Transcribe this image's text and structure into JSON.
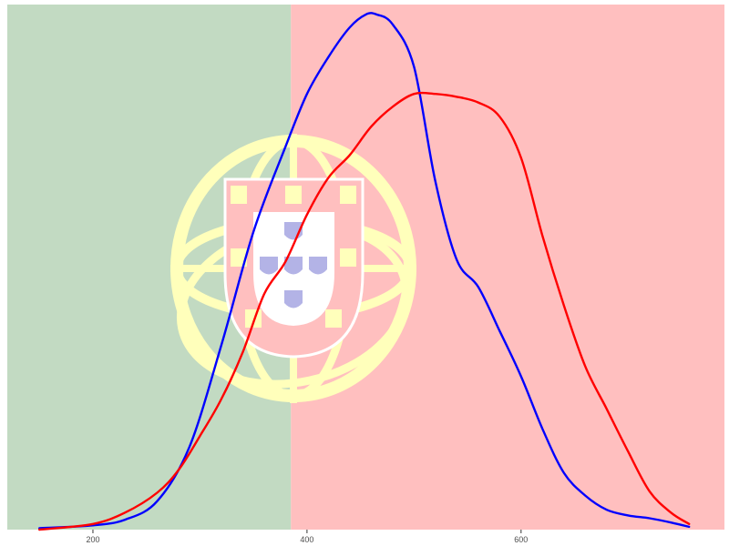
{
  "chart_data": {
    "type": "line",
    "title": "",
    "xlabel": "",
    "ylabel": "",
    "xlim": [
      120,
      790
    ],
    "ylim": [
      0,
      0.0037
    ],
    "x_ticks": [
      200,
      400,
      600
    ],
    "x_tick_labels": [
      "200",
      "400",
      "600"
    ],
    "grid": false,
    "legend": "none",
    "background": {
      "split_x": 385,
      "left_color": "#c2dac2",
      "right_color": "#ffbfbf",
      "emblem_colors": {
        "sphere": "#ffffbb",
        "shield": "#ffbfbf",
        "inner": "#ffffff",
        "quinas": "#b3b3e6"
      }
    },
    "series": [
      {
        "color": "#0000ff",
        "x": [
          150,
          200,
          230,
          260,
          290,
          320,
          350,
          380,
          400,
          420,
          440,
          455,
          465,
          480,
          500,
          520,
          540,
          560,
          580,
          600,
          620,
          640,
          660,
          680,
          700,
          720,
          740,
          757
        ],
        "y": [
          1e-05,
          3e-05,
          7e-05,
          0.0002,
          0.00058,
          0.0013,
          0.0021,
          0.0027,
          0.00307,
          0.00333,
          0.00354,
          0.00363,
          0.00363,
          0.00356,
          0.00326,
          0.00245,
          0.0019,
          0.00171,
          0.0014,
          0.00108,
          0.00071,
          0.0004,
          0.00024,
          0.00014,
          0.0001,
          8e-05,
          5e-05,
          2e-05
        ]
      },
      {
        "color": "#ff0000",
        "x": [
          150,
          200,
          230,
          260,
          280,
          300,
          320,
          340,
          360,
          380,
          400,
          420,
          440,
          460,
          480,
          500,
          520,
          540,
          560,
          580,
          600,
          620,
          640,
          660,
          680,
          700,
          720,
          740,
          757
        ],
        "y": [
          0.0,
          4e-05,
          0.00012,
          0.00026,
          0.00042,
          0.00066,
          0.00092,
          0.00125,
          0.00166,
          0.00189,
          0.00222,
          0.00248,
          0.00264,
          0.00284,
          0.00298,
          0.00307,
          0.00307,
          0.00305,
          0.00301,
          0.00291,
          0.00262,
          0.00207,
          0.00158,
          0.00115,
          0.00085,
          0.00055,
          0.00027,
          0.00012,
          4e-05
        ]
      }
    ]
  }
}
